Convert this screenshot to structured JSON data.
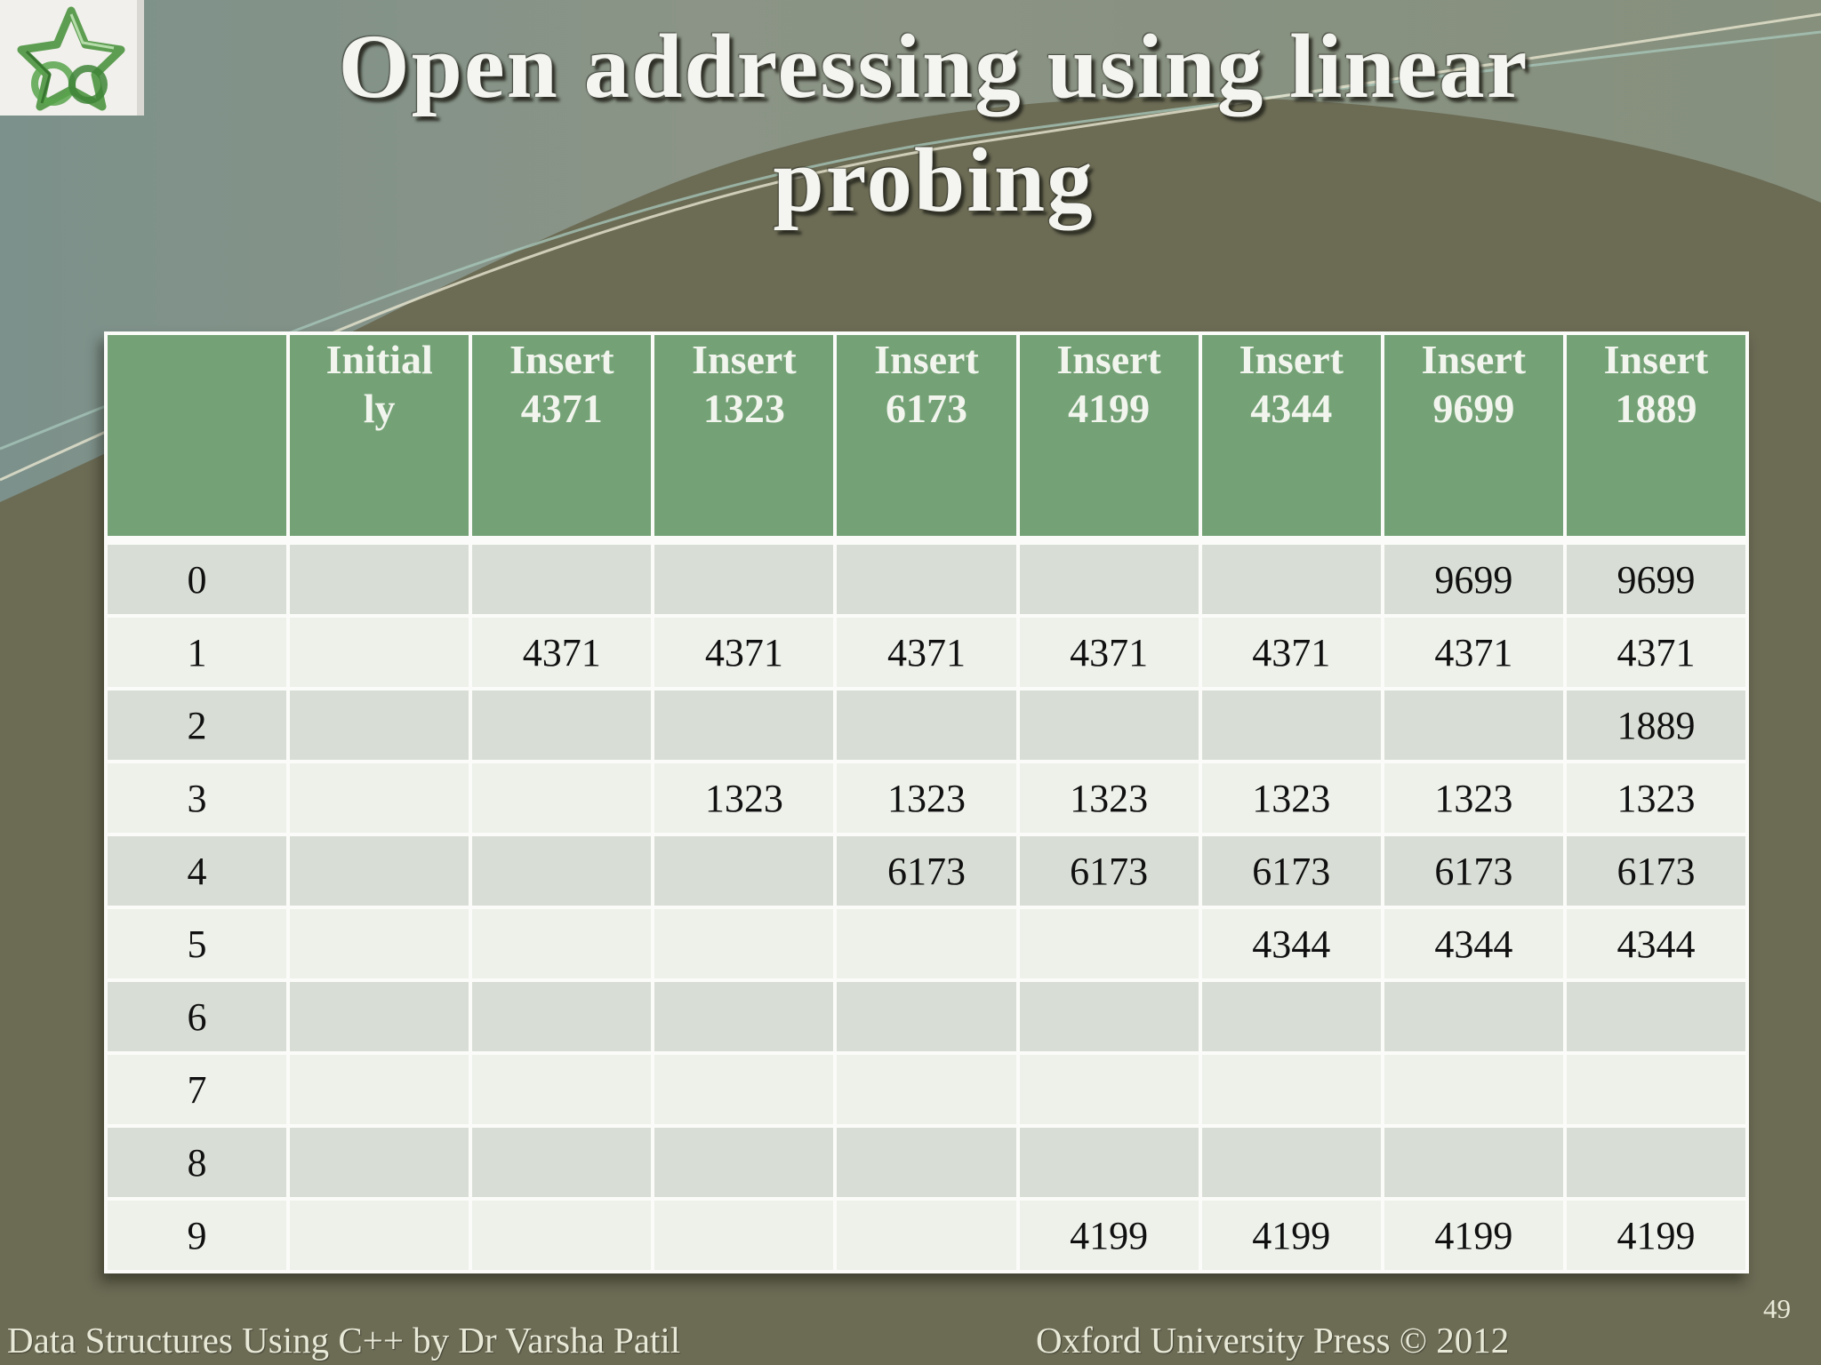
{
  "slide": {
    "title": "Open addressing using linear\nprobing",
    "footer_left": "Data Structures Using C++ by Dr Varsha Patil",
    "footer_right": "Oxford University Press © 2012",
    "page_number": "49"
  },
  "logo": {
    "name": "green-glass-star sculpture logo"
  },
  "table": {
    "columns": [
      "",
      "Initial\nly",
      "Insert 4371",
      "Insert 1323",
      "Insert 6173",
      "Insert 4199",
      "Insert 4344",
      "Insert 9699",
      "Insert 1889"
    ],
    "rows": [
      {
        "index": "0",
        "cells": [
          "",
          "",
          "",
          "",
          "",
          "",
          "9699",
          "9699"
        ]
      },
      {
        "index": "1",
        "cells": [
          "",
          "4371",
          "4371",
          "4371",
          "4371",
          "4371",
          "4371",
          "4371"
        ]
      },
      {
        "index": "2",
        "cells": [
          "",
          "",
          "",
          "",
          "",
          "",
          "",
          "1889"
        ]
      },
      {
        "index": "3",
        "cells": [
          "",
          "",
          "1323",
          "1323",
          "1323",
          "1323",
          "1323",
          "1323"
        ]
      },
      {
        "index": "4",
        "cells": [
          "",
          "",
          "",
          "6173",
          "6173",
          "6173",
          "6173",
          "6173"
        ]
      },
      {
        "index": "5",
        "cells": [
          "",
          "",
          "",
          "",
          "",
          "4344",
          "4344",
          "4344"
        ]
      },
      {
        "index": "6",
        "cells": [
          "",
          "",
          "",
          "",
          "",
          "",
          "",
          ""
        ]
      },
      {
        "index": "7",
        "cells": [
          "",
          "",
          "",
          "",
          "",
          "",
          "",
          ""
        ]
      },
      {
        "index": "8",
        "cells": [
          "",
          "",
          "",
          "",
          "",
          "",
          "",
          ""
        ]
      },
      {
        "index": "9",
        "cells": [
          "",
          "",
          "",
          "",
          "4199",
          "4199",
          "4199",
          "4199"
        ]
      }
    ]
  },
  "colors": {
    "background_olive": "#6c6c55",
    "top_band_sage": "#8b9486",
    "top_band_teal": "#7c918b",
    "header_green": "#74a276",
    "row_dark": "#d8ded5",
    "row_light": "#edf1ea",
    "table_grid_white": "#fbfcf9",
    "title_text": "#f4f5f0",
    "cell_text": "#101010",
    "footer_text": "#e9e9d8"
  }
}
